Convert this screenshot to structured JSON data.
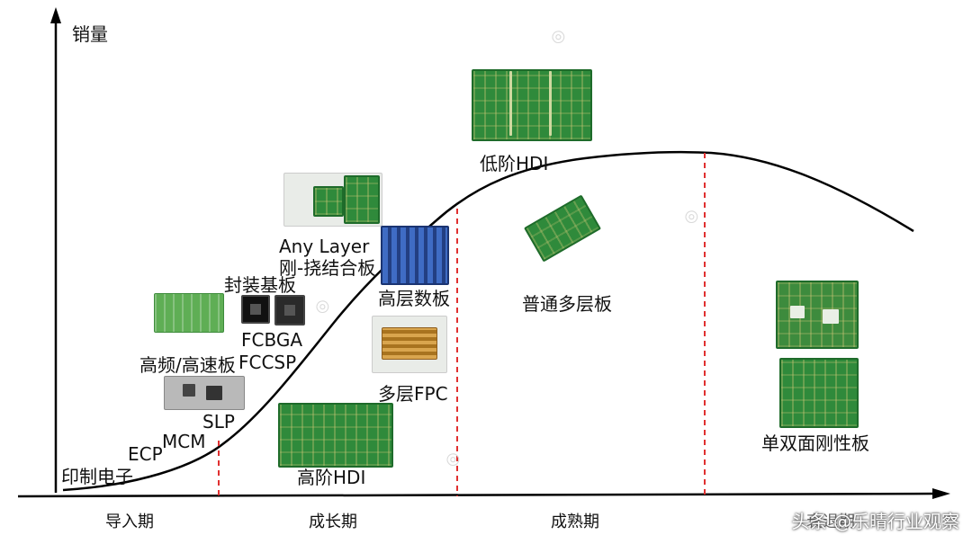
{
  "axes": {
    "y_label": "销量"
  },
  "stages": [
    "导入期",
    "成长期",
    "成熟期",
    "衰退期"
  ],
  "products": {
    "p1": "印制电子",
    "p2": "ECP",
    "p3": "MCM",
    "p4": "SLP",
    "p5": "高频/高速板",
    "p6": "FCCSP",
    "p7": "FCBGA",
    "p8": "封装基板",
    "p9a": "Any Layer",
    "p9b": "刚-挠结合板",
    "p10": "高层数板",
    "p11": "多层FPC",
    "p12": "高阶HDI",
    "p13": "低阶HDI",
    "p14": "普通多层板",
    "p15": "单双面刚性板"
  },
  "footer": {
    "credit": "头条 @乐晴行业观察"
  },
  "colors": {
    "curve": "#000000",
    "divider": "#e03030",
    "axis": "#000000"
  }
}
